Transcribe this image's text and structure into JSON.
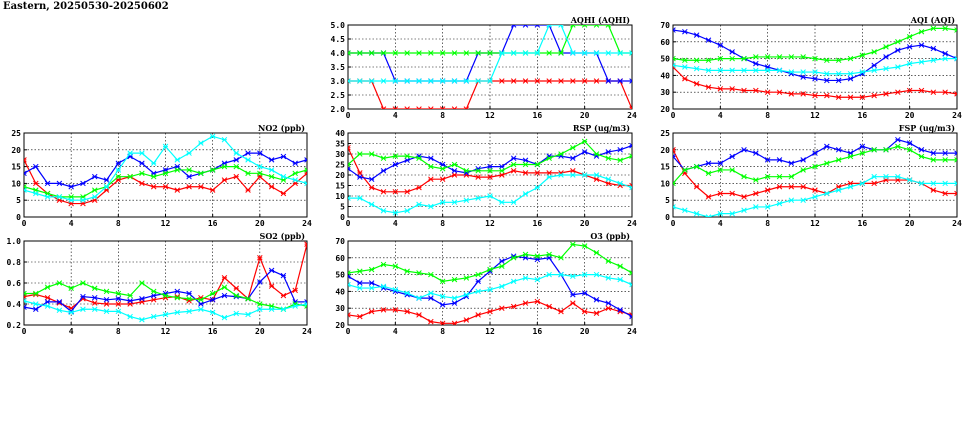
{
  "page": {
    "title": "Eastern, 20250530-20250602"
  },
  "colors": {
    "grid": "#000000",
    "series": [
      "#ff0000",
      "#0000ff",
      "#00ff00",
      "#00ffff"
    ]
  },
  "chart_data": [
    {
      "id": "no2",
      "type": "line",
      "title": "NO2 (ppb)",
      "xlim": [
        0,
        24
      ],
      "xticks": [
        0,
        4,
        8,
        12,
        16,
        20,
        24
      ],
      "ylim": [
        0,
        25
      ],
      "yticks": [
        0,
        5,
        10,
        15,
        20,
        25
      ],
      "grid": true,
      "series": [
        {
          "color": "#ff0000",
          "values": [
            17,
            10,
            7,
            5,
            4,
            4,
            5,
            8,
            11,
            12,
            10,
            9,
            9,
            8,
            9,
            9,
            8,
            11,
            12,
            8,
            12,
            9,
            7,
            10,
            13
          ]
        },
        {
          "color": "#0000ff",
          "values": [
            13,
            15,
            10,
            10,
            9,
            10,
            12,
            11,
            16,
            18,
            16,
            13,
            14,
            15,
            12,
            13,
            14,
            16,
            17,
            19,
            19,
            17,
            18,
            16,
            17
          ]
        },
        {
          "color": "#00ff00",
          "values": [
            9,
            8,
            7,
            6,
            6,
            6,
            8,
            9,
            12,
            12,
            13,
            12,
            13,
            14,
            14,
            13,
            14,
            15,
            15,
            13,
            13,
            12,
            11,
            13,
            14
          ]
        },
        {
          "color": "#00ffff",
          "values": [
            8,
            7,
            6,
            6,
            5,
            5,
            6,
            9,
            14,
            19,
            19,
            16,
            21,
            17,
            19,
            22,
            24,
            23,
            19,
            17,
            15,
            14,
            12,
            11,
            10
          ]
        }
      ]
    },
    {
      "id": "so2",
      "type": "line",
      "title": "SO2 (ppb)",
      "xlim": [
        0,
        24
      ],
      "xticks": [
        0,
        4,
        8,
        12,
        16,
        20,
        24
      ],
      "ylim": [
        0.2,
        1.0
      ],
      "yticks": [
        0.2,
        0.4,
        0.6,
        0.8,
        1.0
      ],
      "grid": true,
      "series": [
        {
          "color": "#ff0000",
          "values": [
            0.47,
            0.49,
            0.46,
            0.41,
            0.36,
            0.45,
            0.41,
            0.4,
            0.4,
            0.4,
            0.42,
            0.44,
            0.46,
            0.47,
            0.43,
            0.46,
            0.44,
            0.65,
            0.55,
            0.45,
            0.84,
            0.57,
            0.48,
            0.53,
            0.97
          ]
        },
        {
          "color": "#0000ff",
          "values": [
            0.37,
            0.35,
            0.42,
            0.42,
            0.33,
            0.47,
            0.46,
            0.44,
            0.45,
            0.43,
            0.45,
            0.48,
            0.5,
            0.52,
            0.5,
            0.4,
            0.44,
            0.48,
            0.47,
            0.45,
            0.61,
            0.72,
            0.67,
            0.42,
            0.42
          ]
        },
        {
          "color": "#00ff00",
          "values": [
            0.5,
            0.5,
            0.56,
            0.6,
            0.55,
            0.6,
            0.55,
            0.52,
            0.5,
            0.48,
            0.6,
            0.52,
            0.48,
            0.46,
            0.45,
            0.44,
            0.5,
            0.56,
            0.48,
            0.45,
            0.4,
            0.38,
            0.35,
            0.4,
            0.38
          ]
        },
        {
          "color": "#00ffff",
          "values": [
            0.43,
            0.4,
            0.38,
            0.34,
            0.32,
            0.35,
            0.35,
            0.33,
            0.33,
            0.28,
            0.25,
            0.28,
            0.3,
            0.32,
            0.33,
            0.35,
            0.32,
            0.27,
            0.31,
            0.3,
            0.35,
            0.35,
            0.35,
            0.38,
            0.4
          ]
        }
      ]
    },
    {
      "id": "aqhi",
      "type": "line",
      "title": "AQHI (AQHI)",
      "xlim": [
        0,
        24
      ],
      "xticks": [
        0,
        4,
        8,
        12,
        16,
        20,
        24
      ],
      "ylim": [
        2.0,
        5.0
      ],
      "yticks": [
        2.0,
        2.5,
        3.0,
        3.5,
        4.0,
        4.5,
        5.0
      ],
      "grid": true,
      "series": [
        {
          "color": "#ff0000",
          "values": [
            3,
            3,
            3,
            2,
            2,
            2,
            2,
            2,
            2,
            2,
            2,
            3,
            3,
            3,
            3,
            3,
            3,
            3,
            3,
            3,
            3,
            3,
            3,
            3,
            2
          ]
        },
        {
          "color": "#0000ff",
          "values": [
            4,
            4,
            4,
            4,
            3,
            3,
            3,
            3,
            3,
            3,
            3,
            4,
            4,
            4,
            5,
            5,
            5,
            5,
            4,
            4,
            4,
            4,
            3,
            3,
            3
          ]
        },
        {
          "color": "#00ff00",
          "values": [
            4,
            4,
            4,
            4,
            4,
            4,
            4,
            4,
            4,
            4,
            4,
            4,
            4,
            4,
            4,
            4,
            4,
            4,
            4,
            5,
            5,
            5,
            5,
            4,
            4
          ]
        },
        {
          "color": "#00ffff",
          "values": [
            3,
            3,
            3,
            3,
            3,
            3,
            3,
            3,
            3,
            3,
            3,
            3,
            3,
            4,
            4,
            4,
            4,
            5,
            5,
            4,
            4,
            4,
            4,
            4,
            4
          ]
        }
      ]
    },
    {
      "id": "rsp",
      "type": "line",
      "title": "RSP (ug/m3)",
      "xlim": [
        0,
        24
      ],
      "xticks": [
        0,
        4,
        8,
        12,
        16,
        20,
        24
      ],
      "ylim": [
        0,
        40
      ],
      "yticks": [
        0,
        5,
        10,
        15,
        20,
        25,
        30,
        35,
        40
      ],
      "grid": true,
      "series": [
        {
          "color": "#ff0000",
          "values": [
            33,
            21,
            14,
            12,
            12,
            12,
            14,
            18,
            18,
            20,
            20,
            19,
            19,
            20,
            22,
            21,
            21,
            21,
            21,
            22,
            20,
            18,
            16,
            15,
            15
          ]
        },
        {
          "color": "#0000ff",
          "values": [
            23,
            19,
            18,
            22,
            25,
            27,
            29,
            28,
            25,
            22,
            21,
            23,
            24,
            24,
            28,
            27,
            25,
            29,
            29,
            28,
            31,
            29,
            31,
            32,
            34
          ]
        },
        {
          "color": "#00ff00",
          "values": [
            25,
            30,
            30,
            28,
            29,
            29,
            28,
            24,
            23,
            25,
            22,
            22,
            22,
            22,
            25,
            25,
            25,
            28,
            30,
            33,
            36,
            30,
            28,
            27,
            29
          ]
        },
        {
          "color": "#00ffff",
          "values": [
            9,
            9,
            6,
            3,
            2,
            3,
            6,
            5,
            7,
            7,
            8,
            9,
            10,
            7,
            7,
            11,
            14,
            19,
            20,
            20,
            20,
            20,
            18,
            16,
            14
          ]
        }
      ]
    },
    {
      "id": "o3",
      "type": "line",
      "title": "O3 (ppb)",
      "xlim": [
        0,
        24
      ],
      "xticks": [
        0,
        4,
        8,
        12,
        16,
        20,
        24
      ],
      "ylim": [
        20,
        70
      ],
      "yticks": [
        20,
        30,
        40,
        50,
        60,
        70
      ],
      "grid": true,
      "series": [
        {
          "color": "#ff0000",
          "values": [
            26,
            25,
            28,
            29,
            29,
            28,
            26,
            22,
            21,
            21,
            23,
            26,
            28,
            30,
            31,
            33,
            34,
            31,
            28,
            33,
            28,
            27,
            30,
            28,
            26
          ]
        },
        {
          "color": "#0000ff",
          "values": [
            49,
            45,
            45,
            42,
            40,
            38,
            36,
            36,
            32,
            33,
            37,
            46,
            52,
            58,
            61,
            60,
            59,
            60,
            50,
            38,
            39,
            35,
            33,
            29,
            25
          ]
        },
        {
          "color": "#00ff00",
          "values": [
            51,
            52,
            53,
            56,
            55,
            52,
            51,
            50,
            46,
            47,
            48,
            50,
            53,
            55,
            60,
            62,
            61,
            62,
            60,
            68,
            67,
            63,
            58,
            55,
            51
          ]
        },
        {
          "color": "#00ffff",
          "values": [
            44,
            42,
            42,
            43,
            41,
            39,
            36,
            39,
            37,
            36,
            38,
            40,
            41,
            43,
            46,
            48,
            47,
            50,
            50,
            49,
            50,
            50,
            48,
            47,
            44
          ]
        }
      ]
    },
    {
      "id": "aqi",
      "type": "line",
      "title": "AQI (AQI)",
      "xlim": [
        0,
        24
      ],
      "xticks": [
        0,
        4,
        8,
        12,
        16,
        20,
        24
      ],
      "ylim": [
        20,
        70
      ],
      "yticks": [
        20,
        30,
        40,
        50,
        60,
        70
      ],
      "grid": true,
      "series": [
        {
          "color": "#ff0000",
          "values": [
            45,
            38,
            35,
            33,
            32,
            32,
            31,
            31,
            30,
            30,
            29,
            29,
            28,
            28,
            27,
            27,
            27,
            28,
            29,
            30,
            31,
            31,
            30,
            30,
            29
          ]
        },
        {
          "color": "#0000ff",
          "values": [
            67,
            66,
            64,
            61,
            58,
            54,
            50,
            47,
            45,
            43,
            41,
            39,
            38,
            37,
            37,
            38,
            41,
            46,
            51,
            55,
            57,
            58,
            56,
            53,
            50
          ]
        },
        {
          "color": "#00ff00",
          "values": [
            50,
            49,
            49,
            49,
            50,
            50,
            50,
            51,
            51,
            51,
            51,
            51,
            50,
            49,
            49,
            50,
            52,
            54,
            57,
            60,
            63,
            66,
            68,
            68,
            67
          ]
        },
        {
          "color": "#00ffff",
          "values": [
            46,
            45,
            44,
            43,
            43,
            43,
            43,
            43,
            43,
            43,
            42,
            42,
            42,
            41,
            41,
            41,
            42,
            43,
            44,
            45,
            47,
            48,
            49,
            50,
            50
          ]
        }
      ]
    },
    {
      "id": "fsp",
      "type": "line",
      "title": "FSP (ug/m3)",
      "xlim": [
        0,
        24
      ],
      "xticks": [
        0,
        4,
        8,
        12,
        16,
        20,
        24
      ],
      "ylim": [
        0,
        25
      ],
      "yticks": [
        0,
        5,
        10,
        15,
        20,
        25
      ],
      "grid": true,
      "series": [
        {
          "color": "#ff0000",
          "values": [
            20,
            13,
            9,
            6,
            7,
            7,
            6,
            7,
            8,
            9,
            9,
            9,
            8,
            7,
            9,
            10,
            10,
            10,
            11,
            11,
            11,
            10,
            8,
            7,
            7
          ]
        },
        {
          "color": "#0000ff",
          "values": [
            18,
            14,
            15,
            16,
            16,
            18,
            20,
            19,
            17,
            17,
            16,
            17,
            19,
            21,
            20,
            19,
            21,
            20,
            20,
            23,
            22,
            20,
            19,
            19,
            19
          ]
        },
        {
          "color": "#00ff00",
          "values": [
            10,
            14,
            15,
            13,
            14,
            14,
            12,
            11,
            12,
            12,
            12,
            14,
            15,
            16,
            17,
            18,
            19,
            20,
            20,
            21,
            20,
            18,
            17,
            17,
            17
          ]
        },
        {
          "color": "#00ffff",
          "values": [
            3,
            2,
            1,
            0,
            1,
            1,
            2,
            3,
            3,
            4,
            5,
            5,
            6,
            7,
            8,
            9,
            10,
            12,
            12,
            12,
            11,
            10,
            10,
            10,
            10
          ]
        }
      ]
    }
  ]
}
